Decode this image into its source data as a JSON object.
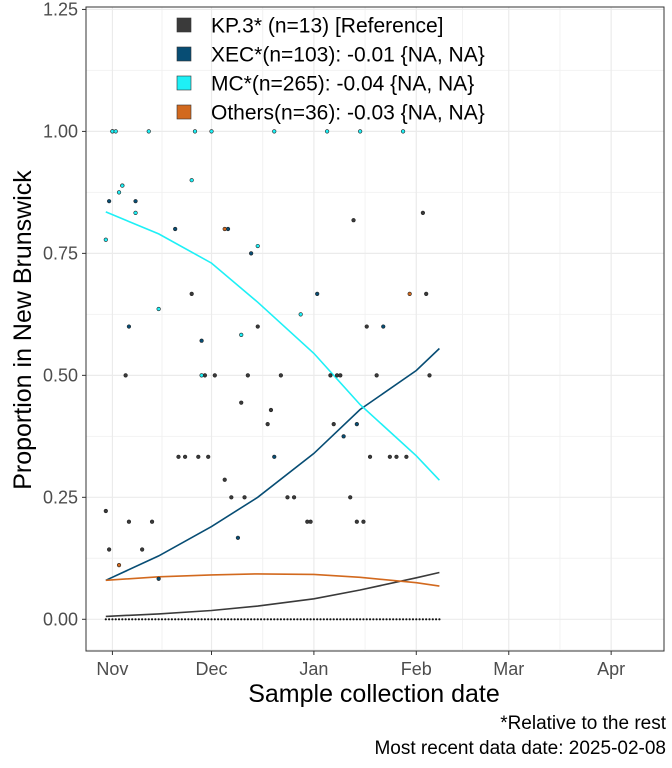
{
  "chart_data": {
    "type": "scatter",
    "xlabel": "Sample collection date",
    "ylabel": "Proportion in New Brunswick",
    "x_ticks": [
      "Nov",
      "Dec",
      "Jan",
      "Feb",
      "Mar",
      "Apr"
    ],
    "x_tick_dates": [
      "2024-11-01",
      "2024-12-01",
      "2025-01-01",
      "2025-02-01",
      "2025-03-01",
      "2025-04-01"
    ],
    "xlim": [
      "2024-10-24",
      "2025-04-17"
    ],
    "y_ticks": [
      "0.00",
      "0.25",
      "0.50",
      "0.75",
      "1.00",
      "1.25"
    ],
    "ylim": [
      -0.065,
      1.255
    ],
    "grid": true,
    "legend_position": "top",
    "series": [
      {
        "name": "KP.3* (n=13)  [Reference]",
        "color": "#3a3a3a",
        "fit": [
          [
            "2024-10-30",
            0.006
          ],
          [
            "2024-11-15",
            0.011
          ],
          [
            "2024-12-01",
            0.018
          ],
          [
            "2024-12-15",
            0.027
          ],
          [
            "2025-01-01",
            0.042
          ],
          [
            "2025-01-15",
            0.06
          ],
          [
            "2025-02-01",
            0.085
          ],
          [
            "2025-02-08",
            0.096
          ]
        ],
        "points": [
          [
            "2024-10-30",
            0.222
          ],
          [
            "2024-10-31",
            0.143
          ],
          [
            "2024-11-05",
            0.5
          ],
          [
            "2024-11-06",
            0.2
          ],
          [
            "2024-11-10",
            0.143
          ],
          [
            "2024-11-13",
            0.2
          ],
          [
            "2024-11-21",
            0.333
          ],
          [
            "2024-11-23",
            0.333
          ],
          [
            "2024-11-25",
            0.667
          ],
          [
            "2024-11-27",
            0.333
          ],
          [
            "2024-11-29",
            0.5
          ],
          [
            "2024-11-30",
            0.333
          ],
          [
            "2024-12-02",
            0.5
          ],
          [
            "2024-12-05",
            0.286
          ],
          [
            "2024-12-07",
            0.25
          ],
          [
            "2024-12-10",
            0.444
          ],
          [
            "2024-12-11",
            0.25
          ],
          [
            "2024-12-12",
            0.5
          ],
          [
            "2024-12-15",
            0.6
          ],
          [
            "2024-12-18",
            0.4
          ],
          [
            "2024-12-19",
            0.429
          ],
          [
            "2024-12-22",
            0.5
          ],
          [
            "2024-12-24",
            0.25
          ],
          [
            "2024-12-26",
            0.25
          ],
          [
            "2024-12-30",
            0.2
          ],
          [
            "2024-12-31",
            0.2
          ],
          [
            "2025-01-06",
            0.5
          ],
          [
            "2025-01-07",
            0.4
          ],
          [
            "2025-01-08",
            0.5
          ],
          [
            "2025-01-09",
            0.5
          ],
          [
            "2025-01-12",
            0.25
          ],
          [
            "2025-01-13",
            0.818
          ],
          [
            "2025-01-14",
            0.2
          ],
          [
            "2025-01-16",
            0.2
          ],
          [
            "2025-01-17",
            0.6
          ],
          [
            "2025-01-18",
            0.333
          ],
          [
            "2025-01-20",
            0.5
          ],
          [
            "2025-01-24",
            0.333
          ],
          [
            "2025-01-26",
            0.333
          ],
          [
            "2025-01-29",
            0.333
          ],
          [
            "2025-02-03",
            0.833
          ],
          [
            "2025-02-04",
            0.667
          ],
          [
            "2025-02-05",
            0.5
          ]
        ]
      },
      {
        "name": "XEC*(n=103): -0.01 {NA, NA}",
        "color": "#074d74",
        "fit": [
          [
            "2024-10-30",
            0.08
          ],
          [
            "2024-11-15",
            0.13
          ],
          [
            "2024-12-01",
            0.19
          ],
          [
            "2024-12-15",
            0.25
          ],
          [
            "2025-01-01",
            0.34
          ],
          [
            "2025-01-15",
            0.43
          ],
          [
            "2025-02-01",
            0.51
          ],
          [
            "2025-02-08",
            0.555
          ]
        ],
        "points": [
          [
            "2024-10-31",
            0.857
          ],
          [
            "2024-11-01",
            1.0
          ],
          [
            "2024-11-04",
            0.889
          ],
          [
            "2024-11-06",
            0.6
          ],
          [
            "2024-11-08",
            0.857
          ],
          [
            "2024-11-15",
            0.083
          ],
          [
            "2024-11-20",
            0.8
          ],
          [
            "2024-11-28",
            0.571
          ],
          [
            "2024-12-06",
            0.8
          ],
          [
            "2024-12-09",
            0.167
          ],
          [
            "2024-12-13",
            0.75
          ],
          [
            "2024-12-20",
            0.333
          ],
          [
            "2025-01-02",
            0.667
          ],
          [
            "2025-01-10",
            0.375
          ],
          [
            "2025-01-14",
            0.4
          ],
          [
            "2025-01-22",
            0.6
          ]
        ]
      },
      {
        "name": "MC*(n=265): -0.04 {NA, NA}",
        "color": "#1ef0f6",
        "fit": [
          [
            "2024-10-30",
            0.835
          ],
          [
            "2024-11-15",
            0.79
          ],
          [
            "2024-12-01",
            0.73
          ],
          [
            "2024-12-15",
            0.65
          ],
          [
            "2025-01-01",
            0.545
          ],
          [
            "2025-01-15",
            0.44
          ],
          [
            "2025-02-01",
            0.335
          ],
          [
            "2025-02-08",
            0.285
          ]
        ],
        "points": [
          [
            "2024-10-30",
            0.778
          ],
          [
            "2024-11-01",
            1.0
          ],
          [
            "2024-11-02",
            1.0
          ],
          [
            "2024-11-03",
            0.875
          ],
          [
            "2024-11-04",
            0.889
          ],
          [
            "2024-11-08",
            0.833
          ],
          [
            "2024-11-12",
            1.0
          ],
          [
            "2024-11-15",
            0.636
          ],
          [
            "2024-11-25",
            0.9
          ],
          [
            "2024-11-26",
            1.0
          ],
          [
            "2024-11-28",
            0.5
          ],
          [
            "2024-12-01",
            1.0
          ],
          [
            "2024-12-10",
            0.583
          ],
          [
            "2024-12-15",
            0.765
          ],
          [
            "2024-12-20",
            1.0
          ],
          [
            "2024-12-28",
            0.625
          ],
          [
            "2025-01-05",
            1.0
          ],
          [
            "2025-01-15",
            1.0
          ],
          [
            "2025-01-28",
            1.0
          ]
        ]
      },
      {
        "name": "Others(n=36): -0.03 {NA, NA}",
        "color": "#d2691e",
        "fit": [
          [
            "2024-10-30",
            0.08
          ],
          [
            "2024-11-15",
            0.087
          ],
          [
            "2024-12-01",
            0.091
          ],
          [
            "2024-12-15",
            0.093
          ],
          [
            "2025-01-01",
            0.092
          ],
          [
            "2025-01-15",
            0.086
          ],
          [
            "2025-02-01",
            0.075
          ],
          [
            "2025-02-08",
            0.068
          ]
        ],
        "points": [
          [
            "2024-11-03",
            0.111
          ],
          [
            "2024-12-05",
            0.8
          ],
          [
            "2025-01-30",
            0.667
          ]
        ]
      }
    ]
  },
  "caption": {
    "line1": "*Relative to the rest",
    "line2": "Most recent data date: 2025-02-08"
  }
}
